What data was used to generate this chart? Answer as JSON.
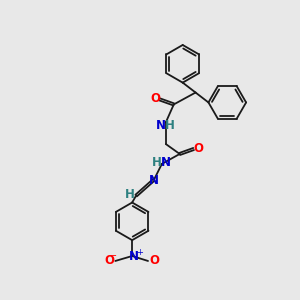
{
  "bg_color": "#e8e8e8",
  "bond_color": "#1a1a1a",
  "atom_colors": {
    "O": "#ff0000",
    "N": "#0000cc",
    "H": "#2d8080"
  },
  "figsize": [
    3.0,
    3.0
  ],
  "dpi": 100,
  "bond_lw": 1.3,
  "font_size": 8.5
}
